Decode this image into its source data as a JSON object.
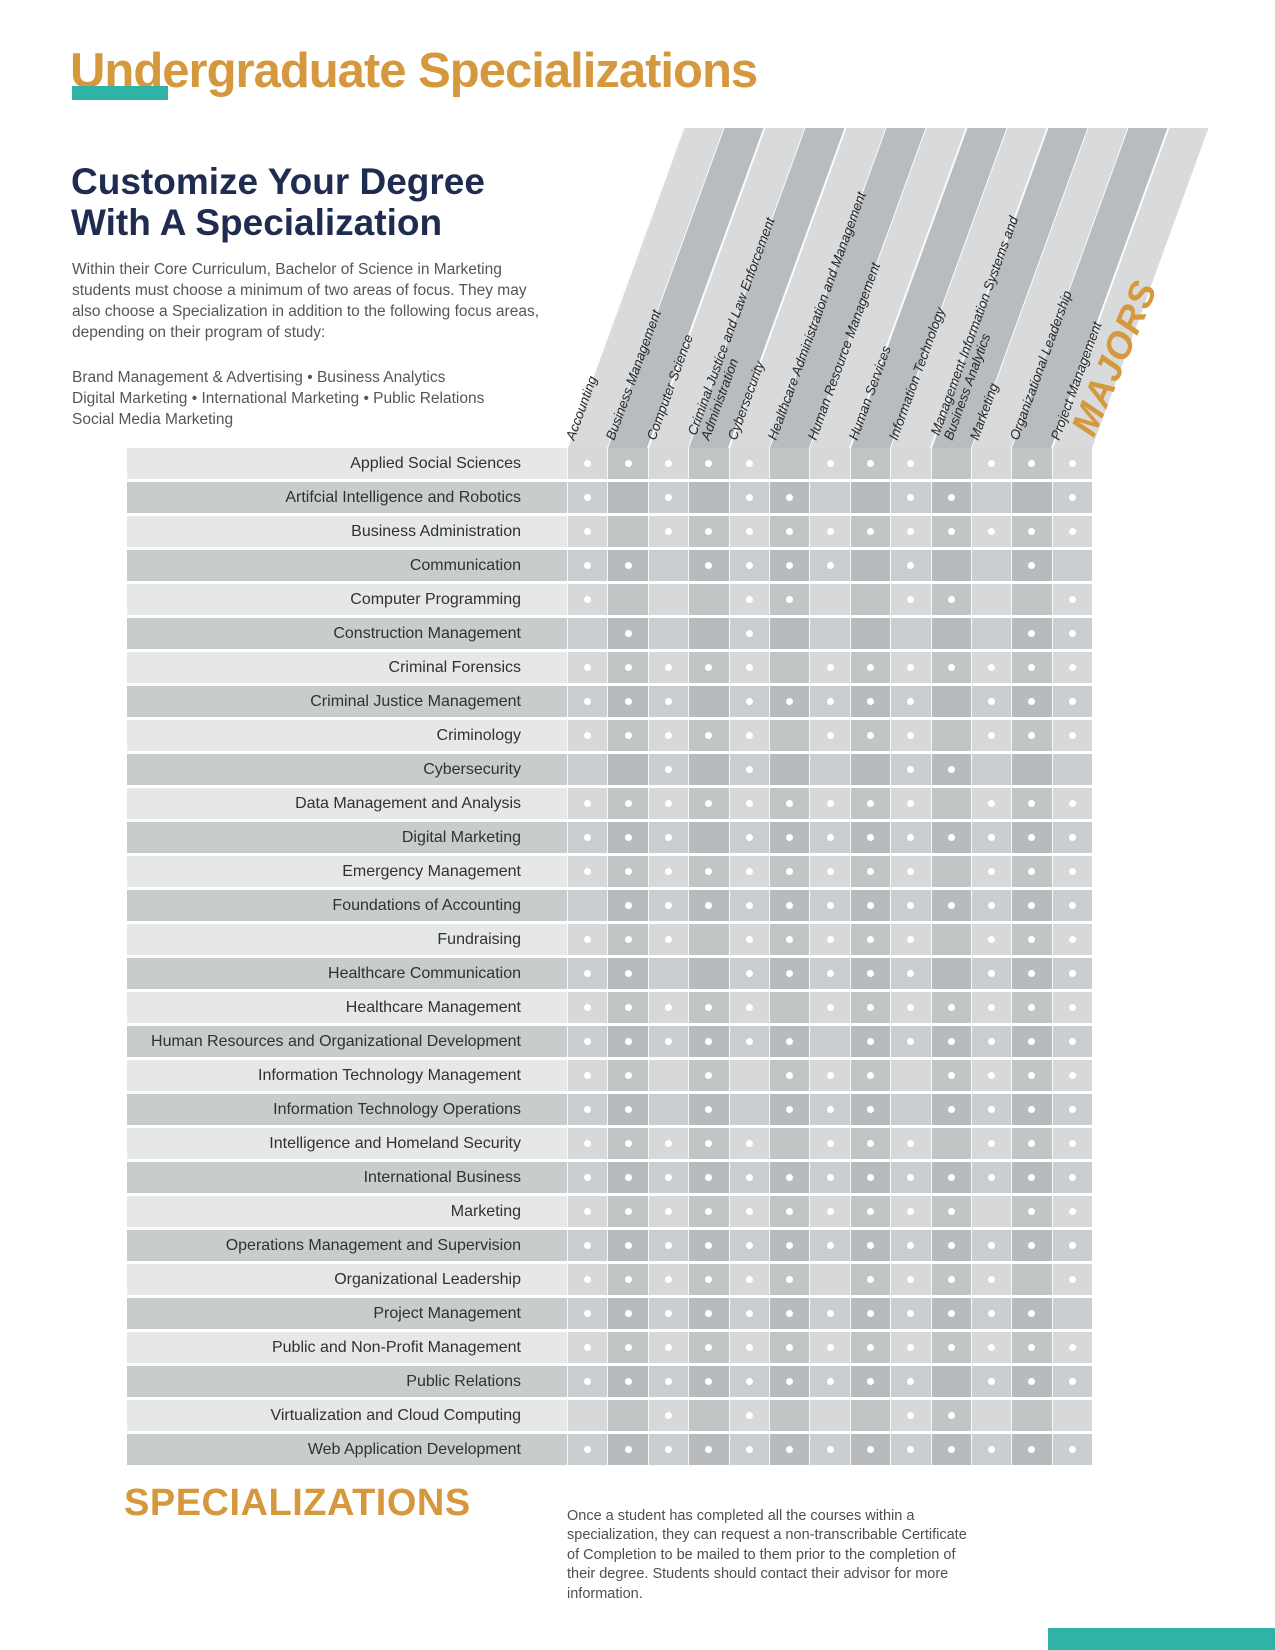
{
  "colors": {
    "accent_orange": "#D6983C",
    "teal": "#2FB3A6",
    "navy": "#1F2C50"
  },
  "header": {
    "title": "Undergraduate Specializations"
  },
  "intro": {
    "heading": "Customize Your Degree\nWith A Specialization",
    "body": "Within their Core Curriculum, Bachelor of Science in Marketing students must choose a minimum of two areas of focus. They may also choose a Specialization in addition to the following focus areas, depending on their program of study:",
    "focus_areas": "Brand Management & Advertising • Business Analytics\nDigital Marketing • International Marketing • Public Relations\nSocial Media Marketing"
  },
  "matrix": {
    "majors_label": "MAJORS",
    "columns": [
      "Accounting",
      "Business Management",
      "Computer Science",
      "Criminal Justice and Law Enforcement\nAdministration",
      "Cybersecurity",
      "Healthcare Administration and Management",
      "Human Resource Management",
      "Human Services",
      "Information Technology",
      "Management Information Systems and\nBusiness Analytics",
      "Marketing",
      "Organizational Leadership",
      "Project Management"
    ],
    "rows": [
      {
        "label": "Applied Social Sciences",
        "dots": [
          1,
          1,
          1,
          1,
          1,
          0,
          1,
          1,
          1,
          0,
          1,
          1,
          1
        ]
      },
      {
        "label": "Artifcial Intelligence and Robotics",
        "dots": [
          1,
          0,
          1,
          0,
          1,
          1,
          0,
          0,
          1,
          1,
          0,
          0,
          1
        ]
      },
      {
        "label": "Business Administration",
        "dots": [
          1,
          0,
          1,
          1,
          1,
          1,
          1,
          1,
          1,
          1,
          1,
          1,
          1
        ]
      },
      {
        "label": "Communication",
        "dots": [
          1,
          1,
          0,
          1,
          1,
          1,
          1,
          0,
          1,
          0,
          0,
          1,
          0
        ]
      },
      {
        "label": "Computer Programming",
        "dots": [
          1,
          0,
          0,
          0,
          1,
          1,
          0,
          0,
          1,
          1,
          0,
          0,
          1
        ]
      },
      {
        "label": "Construction Management",
        "dots": [
          0,
          1,
          0,
          0,
          1,
          0,
          0,
          0,
          0,
          0,
          0,
          1,
          1
        ]
      },
      {
        "label": "Criminal Forensics",
        "dots": [
          1,
          1,
          1,
          1,
          1,
          0,
          1,
          1,
          1,
          1,
          1,
          1,
          1
        ]
      },
      {
        "label": "Criminal Justice Management",
        "dots": [
          1,
          1,
          1,
          0,
          1,
          1,
          1,
          1,
          1,
          0,
          1,
          1,
          1
        ]
      },
      {
        "label": "Criminology",
        "dots": [
          1,
          1,
          1,
          1,
          1,
          0,
          1,
          1,
          1,
          0,
          1,
          1,
          1
        ]
      },
      {
        "label": "Cybersecurity",
        "dots": [
          0,
          0,
          1,
          0,
          1,
          0,
          0,
          0,
          1,
          1,
          0,
          0,
          0
        ]
      },
      {
        "label": "Data Management and Analysis",
        "dots": [
          1,
          1,
          1,
          1,
          1,
          1,
          1,
          1,
          1,
          0,
          1,
          1,
          1
        ]
      },
      {
        "label": "Digital Marketing",
        "dots": [
          1,
          1,
          1,
          0,
          1,
          1,
          1,
          1,
          1,
          1,
          1,
          1,
          1
        ]
      },
      {
        "label": "Emergency Management",
        "dots": [
          1,
          1,
          1,
          1,
          1,
          1,
          1,
          1,
          1,
          0,
          1,
          1,
          1
        ]
      },
      {
        "label": "Foundations of Accounting",
        "dots": [
          0,
          1,
          1,
          1,
          1,
          1,
          1,
          1,
          1,
          1,
          1,
          1,
          1
        ]
      },
      {
        "label": "Fundraising",
        "dots": [
          1,
          1,
          1,
          0,
          1,
          1,
          1,
          1,
          1,
          0,
          1,
          1,
          1
        ]
      },
      {
        "label": "Healthcare Communication",
        "dots": [
          1,
          1,
          0,
          0,
          1,
          1,
          1,
          1,
          1,
          0,
          1,
          1,
          1
        ]
      },
      {
        "label": "Healthcare Management",
        "dots": [
          1,
          1,
          1,
          1,
          1,
          0,
          1,
          1,
          1,
          1,
          1,
          1,
          1
        ]
      },
      {
        "label": "Human Resources and Organizational Development",
        "dots": [
          1,
          1,
          1,
          1,
          1,
          1,
          0,
          1,
          1,
          1,
          1,
          1,
          1
        ]
      },
      {
        "label": "Information Technology Management",
        "dots": [
          1,
          1,
          0,
          1,
          0,
          1,
          1,
          1,
          0,
          1,
          1,
          1,
          1
        ]
      },
      {
        "label": "Information Technology Operations",
        "dots": [
          1,
          1,
          0,
          1,
          0,
          1,
          1,
          1,
          0,
          1,
          1,
          1,
          1
        ]
      },
      {
        "label": "Intelligence and Homeland Security",
        "dots": [
          1,
          1,
          1,
          1,
          1,
          0,
          1,
          1,
          1,
          0,
          1,
          1,
          1
        ]
      },
      {
        "label": "International Business",
        "dots": [
          1,
          1,
          1,
          1,
          1,
          1,
          1,
          1,
          1,
          1,
          1,
          1,
          1
        ]
      },
      {
        "label": "Marketing",
        "dots": [
          1,
          1,
          1,
          1,
          1,
          1,
          1,
          1,
          1,
          1,
          0,
          1,
          1
        ]
      },
      {
        "label": "Operations Management and Supervision",
        "dots": [
          1,
          1,
          1,
          1,
          1,
          1,
          1,
          1,
          1,
          1,
          1,
          1,
          1
        ]
      },
      {
        "label": "Organizational Leadership",
        "dots": [
          1,
          1,
          1,
          1,
          1,
          1,
          0,
          1,
          1,
          1,
          1,
          0,
          1
        ]
      },
      {
        "label": "Project Management",
        "dots": [
          1,
          1,
          1,
          1,
          1,
          1,
          1,
          1,
          1,
          1,
          1,
          1,
          0
        ]
      },
      {
        "label": "Public and Non-Profit Management",
        "dots": [
          1,
          1,
          1,
          1,
          1,
          1,
          1,
          1,
          1,
          1,
          1,
          1,
          1
        ]
      },
      {
        "label": "Public Relations",
        "dots": [
          1,
          1,
          1,
          1,
          1,
          1,
          1,
          1,
          1,
          0,
          1,
          1,
          1
        ]
      },
      {
        "label": "Virtualization and Cloud Computing",
        "dots": [
          0,
          0,
          1,
          0,
          1,
          0,
          0,
          0,
          1,
          1,
          0,
          0,
          0
        ]
      },
      {
        "label": "Web Application Development",
        "dots": [
          1,
          1,
          1,
          1,
          1,
          1,
          1,
          1,
          1,
          1,
          1,
          1,
          1
        ]
      }
    ]
  },
  "footer": {
    "heading": "SPECIALIZATIONS",
    "note": "Once a student has completed all the courses within a specialization, they can request a non-transcribable Certificate of Completion to be mailed to them prior to the completion of their degree. Students should contact their advisor for more information."
  }
}
